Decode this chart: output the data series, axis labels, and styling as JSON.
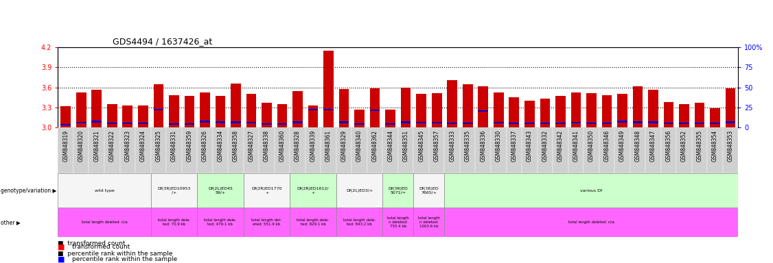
{
  "title": "GDS4494 / 1637426_at",
  "samples": [
    "GSM848319",
    "GSM848320",
    "GSM848321",
    "GSM848322",
    "GSM848323",
    "GSM848324",
    "GSM848325",
    "GSM848331",
    "GSM848359",
    "GSM848326",
    "GSM848334",
    "GSM848358",
    "GSM848327",
    "GSM848338",
    "GSM848360",
    "GSM848328",
    "GSM848339",
    "GSM848361",
    "GSM848329",
    "GSM848340",
    "GSM848362",
    "GSM848344",
    "GSM848351",
    "GSM848345",
    "GSM848357",
    "GSM848333",
    "GSM848335",
    "GSM848336",
    "GSM848330",
    "GSM848337",
    "GSM848343",
    "GSM848332",
    "GSM848342",
    "GSM848341",
    "GSM848350",
    "GSM848346",
    "GSM848349",
    "GSM848348",
    "GSM848347",
    "GSM848356",
    "GSM848352",
    "GSM848355",
    "GSM848354",
    "GSM848353"
  ],
  "bar_values": [
    3.32,
    3.52,
    3.57,
    3.35,
    3.33,
    3.33,
    3.65,
    3.48,
    3.47,
    3.52,
    3.47,
    3.66,
    3.5,
    3.37,
    3.35,
    3.55,
    3.33,
    4.15,
    3.58,
    3.27,
    3.59,
    3.27,
    3.6,
    3.5,
    3.51,
    3.71,
    3.65,
    3.62,
    3.52,
    3.45,
    3.4,
    3.43,
    3.47,
    3.52,
    3.51,
    3.48,
    3.5,
    3.62,
    3.57,
    3.38,
    3.35,
    3.37,
    3.29,
    3.59
  ],
  "blue_marker_values": [
    3.04,
    3.07,
    3.09,
    3.06,
    3.06,
    3.06,
    3.27,
    3.05,
    3.05,
    3.09,
    3.08,
    3.08,
    3.07,
    3.05,
    3.05,
    3.08,
    3.27,
    3.27,
    3.08,
    3.05,
    3.26,
    3.05,
    3.08,
    3.07,
    3.07,
    3.06,
    3.06,
    3.25,
    3.07,
    3.06,
    3.06,
    3.06,
    3.06,
    3.07,
    3.06,
    3.06,
    3.09,
    3.08,
    3.08,
    3.06,
    3.06,
    3.06,
    3.06,
    3.08
  ],
  "ymin": 3.0,
  "ymax": 4.2,
  "yticks": [
    3.0,
    3.3,
    3.6,
    3.9,
    4.2
  ],
  "right_yticks": [
    0,
    25,
    50,
    75,
    100
  ],
  "right_ytick_labels": [
    "0",
    "25",
    "50",
    "75",
    "100%"
  ],
  "bar_color": "#cc0000",
  "blue_color": "#0000cc",
  "bg_color": "#ffffff",
  "plot_bg": "#ffffff",
  "geno_groups": [
    {
      "label": "wild type",
      "start": 0,
      "end": 5,
      "bg": "#f5f5f5"
    },
    {
      "label": "Df(3R)ED10953\n/+",
      "start": 6,
      "end": 8,
      "bg": "#f5f5f5"
    },
    {
      "label": "Df(2L)ED45\n59/+",
      "start": 9,
      "end": 11,
      "bg": "#ccffcc"
    },
    {
      "label": "Df(2R)ED1770\n+",
      "start": 12,
      "end": 14,
      "bg": "#f5f5f5"
    },
    {
      "label": "Df(2R)ED1612/\n+",
      "start": 15,
      "end": 17,
      "bg": "#ccffcc"
    },
    {
      "label": "Df(2L)ED3/+",
      "start": 18,
      "end": 20,
      "bg": "#f5f5f5"
    },
    {
      "label": "Df(3R)ED\n5071/=",
      "start": 21,
      "end": 22,
      "bg": "#ccffcc"
    },
    {
      "label": "Df(3R)ED\n7665/+",
      "start": 23,
      "end": 24,
      "bg": "#f5f5f5"
    },
    {
      "label": "various Df",
      "start": 25,
      "end": 43,
      "bg": "#ccffcc"
    }
  ],
  "other_groups": [
    {
      "label": "total length deleted: n/a",
      "start": 0,
      "end": 5
    },
    {
      "label": "total length dele-\nted: 70.9 kb",
      "start": 6,
      "end": 8
    },
    {
      "label": "total length dele-\nted: 479.1 kb",
      "start": 9,
      "end": 11
    },
    {
      "label": "total length del-\neted: 551.9 kb",
      "start": 12,
      "end": 14
    },
    {
      "label": "total length dele-\nted: 829.1 kb",
      "start": 15,
      "end": 17
    },
    {
      "label": "total length dele-\nted: 843.2 kb",
      "start": 18,
      "end": 20
    },
    {
      "label": "total length\nn deleted:\n755.4 kb",
      "start": 21,
      "end": 22
    },
    {
      "label": "total length\nn deleted:\n1003.6 kb",
      "start": 23,
      "end": 24
    },
    {
      "label": "total length deleted: n/a",
      "start": 25,
      "end": 43
    }
  ],
  "other_bg": "#ff66ff",
  "tick_label_bg": "#d0d0d0"
}
